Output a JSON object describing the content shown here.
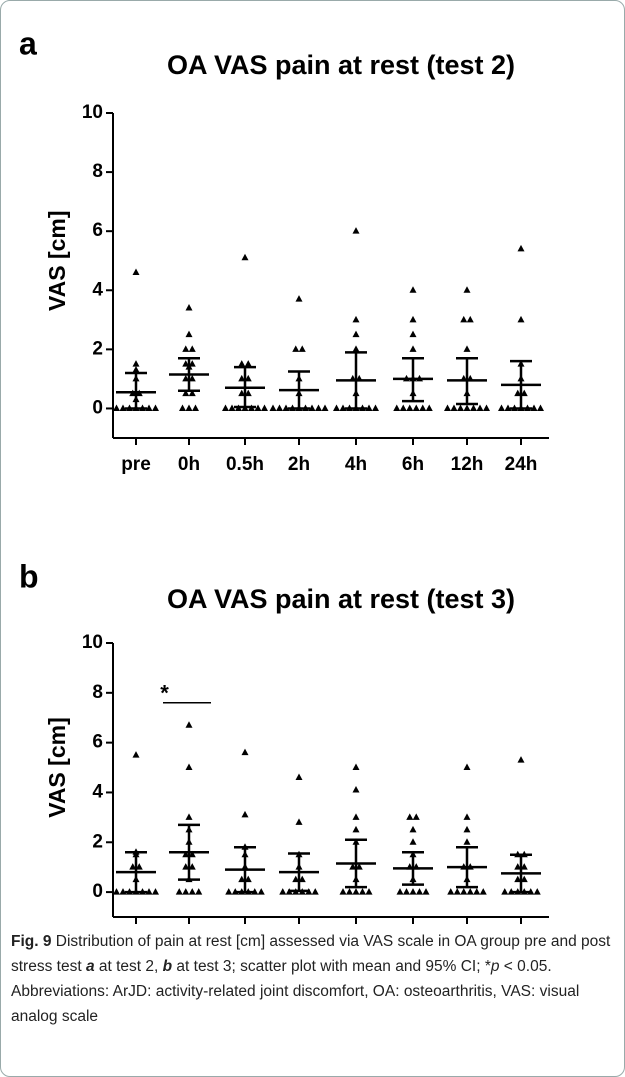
{
  "chart_data": [
    {
      "type": "scatter",
      "panel": "a",
      "title": "OA VAS pain at rest (test 2)",
      "ylabel": "VAS [cm]",
      "categories": [
        "pre",
        "0h",
        "0.5h",
        "2h",
        "4h",
        "6h",
        "12h",
        "24h"
      ],
      "ylim": [
        -1,
        10
      ],
      "yticks": [
        0,
        2,
        4,
        6,
        8,
        10
      ],
      "color": "#000000",
      "points": [
        [
          4.6,
          1.5,
          1.3,
          1.0,
          0.5,
          0.5,
          0.3,
          0,
          0,
          0,
          0,
          0,
          0,
          0
        ],
        [
          3.4,
          2.5,
          2.0,
          2.0,
          1.5,
          1.5,
          1.4,
          1.0,
          1.0,
          0.5,
          0.5,
          0,
          0,
          0
        ],
        [
          5.1,
          1.5,
          1.5,
          1.0,
          1.0,
          0.5,
          0.5,
          0,
          0,
          0,
          0,
          0,
          0,
          0
        ],
        [
          3.7,
          2.0,
          2.0,
          1.0,
          0.5,
          0,
          0,
          0,
          0,
          0,
          0,
          0,
          0,
          0
        ],
        [
          6.0,
          3.0,
          2.5,
          2.0,
          1.0,
          1.0,
          0.5,
          0,
          0,
          0,
          0,
          0,
          0,
          0
        ],
        [
          4.0,
          3.0,
          2.5,
          2.0,
          1.0,
          1.0,
          1.0,
          0.5,
          0,
          0,
          0,
          0,
          0,
          0
        ],
        [
          4.0,
          3.0,
          3.0,
          2.0,
          1.0,
          1.0,
          0.5,
          0,
          0,
          0,
          0,
          0,
          0,
          0
        ],
        [
          5.4,
          3.0,
          1.5,
          1.0,
          0.5,
          0.5,
          0,
          0,
          0,
          0,
          0,
          0,
          0
        ]
      ],
      "mean": [
        0.55,
        1.15,
        0.7,
        0.62,
        0.95,
        1.0,
        0.95,
        0.8
      ],
      "ci_low": [
        0,
        0.6,
        0.05,
        0,
        0,
        0.25,
        0.15,
        0
      ],
      "ci_high": [
        1.2,
        1.7,
        1.4,
        1.25,
        1.9,
        1.7,
        1.7,
        1.6
      ]
    },
    {
      "type": "scatter",
      "panel": "b",
      "title": "OA VAS pain at rest (test 3)",
      "ylabel": "VAS [cm]",
      "categories": [
        "pre",
        "0h",
        "0.5h",
        "2h",
        "4h",
        "6h",
        "12h",
        "24h"
      ],
      "ylim": [
        -1,
        10
      ],
      "yticks": [
        0,
        2,
        4,
        6,
        8,
        10
      ],
      "color": "#000000",
      "annotation": "*",
      "points": [
        [
          5.5,
          1.6,
          1.5,
          1.0,
          1.0,
          0.5,
          0,
          0,
          0,
          0,
          0,
          0,
          0
        ],
        [
          6.7,
          5.0,
          3.0,
          2.5,
          2.0,
          1.5,
          1.5,
          1.0,
          1.0,
          0.5,
          0,
          0,
          0,
          0
        ],
        [
          5.6,
          3.1,
          1.8,
          1.5,
          1.0,
          0.5,
          0.5,
          0,
          0,
          0,
          0,
          0,
          0
        ],
        [
          4.6,
          2.8,
          1.5,
          1.0,
          0.5,
          0.5,
          0,
          0,
          0,
          0,
          0,
          0
        ],
        [
          5.0,
          4.1,
          3.0,
          2.5,
          2.0,
          1.0,
          1.0,
          0.5,
          0,
          0,
          0,
          0,
          0
        ],
        [
          3.0,
          3.0,
          2.5,
          2.0,
          1.5,
          1.0,
          1.0,
          0.5,
          0,
          0,
          0,
          0,
          0
        ],
        [
          5.0,
          3.0,
          2.5,
          2.0,
          1.0,
          1.0,
          0.5,
          0,
          0,
          0,
          0,
          0,
          0
        ],
        [
          5.3,
          1.5,
          1.5,
          1.0,
          1.0,
          0.5,
          0.5,
          0,
          0,
          0,
          0,
          0,
          0
        ]
      ],
      "mean": [
        0.8,
        1.6,
        0.9,
        0.8,
        1.15,
        0.95,
        1.0,
        0.75
      ],
      "ci_low": [
        0,
        0.5,
        0,
        0.05,
        0.2,
        0.3,
        0.2,
        0
      ],
      "ci_high": [
        1.6,
        2.7,
        1.8,
        1.55,
        2.1,
        1.6,
        1.8,
        1.5
      ]
    }
  ],
  "caption": [
    "Fig. 9",
    " Distribution of pain at rest [cm] assessed via VAS scale in OA group pre and post stress test ",
    "a",
    " at test 2, ",
    "b",
    " at test 3; scatter plot with mean and 95% CI; *",
    "p",
    " < 0.05. Abbreviations: ArJD: activity-related joint discomfort, OA: osteoarthritis, VAS: visual analog scale"
  ]
}
